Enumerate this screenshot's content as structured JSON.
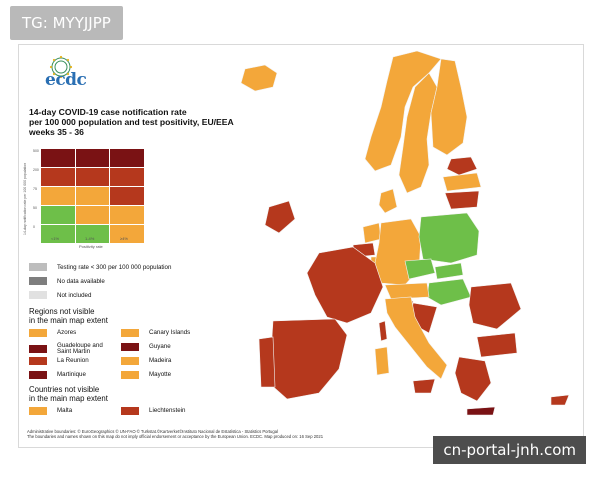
{
  "tag": "TG: MYYJJPP",
  "watermark": "cn-portal-jnh.com",
  "logo": {
    "text": "ecdc",
    "icon": "ecdc-logo-icon"
  },
  "title": {
    "line1": "14-day COVID-19 case notification rate",
    "line2": "per 100 000 population and test positivity, EU/EEA",
    "line3": "weeks 35 - 36"
  },
  "colors": {
    "dark_red": "#7a1214",
    "red": "#b5381d",
    "orange": "#f3a73a",
    "green": "#6ebf49",
    "grey_testing": "#bdbdbd",
    "grey_nodata": "#7e7e7e",
    "grey_notincluded": "#e1e1e1",
    "sea": "#ffffff"
  },
  "matrix": {
    "rows": [
      [
        "dark_red",
        "dark_red",
        "dark_red"
      ],
      [
        "red",
        "red",
        "red"
      ],
      [
        "orange",
        "orange",
        "red"
      ],
      [
        "green",
        "orange",
        "orange"
      ],
      [
        "green",
        "green",
        "orange"
      ]
    ],
    "y_axis_label": "14-day notification rate per 100 000 population",
    "y_ticks": [
      "500",
      "200",
      "75",
      "50",
      "0"
    ],
    "x_ticks": [
      "<1%",
      "1-4%",
      "≥4%"
    ],
    "x_axis_label": "Positivity rate"
  },
  "legend": {
    "testing_rate": "Testing rate < 300 per 100 000 population",
    "no_data": "No data available",
    "not_included": "Not included"
  },
  "regions_heading": {
    "line1": "Regions not visible",
    "line2": "in the main map extent"
  },
  "regions": [
    {
      "label": "Azores",
      "color": "orange"
    },
    {
      "label": "Canary Islands",
      "color": "orange"
    },
    {
      "label": "Guadeloupe and Saint Martin",
      "color": "dark_red"
    },
    {
      "label": "Guyane",
      "color": "dark_red"
    },
    {
      "label": "La Reunion",
      "color": "red"
    },
    {
      "label": "Madeira",
      "color": "orange"
    },
    {
      "label": "Martinique",
      "color": "dark_red"
    },
    {
      "label": "Mayotte",
      "color": "orange"
    }
  ],
  "countries_heading": {
    "line1": "Countries not visible",
    "line2": "in the main map extent"
  },
  "countries": [
    {
      "label": "Malta",
      "color": "orange"
    },
    {
      "label": "Liechtenstein",
      "color": "red"
    }
  ],
  "footer": {
    "line1": "Administrative boundaries: © EuroGeographics © UN-FAO © Turkstat.©Kartverket©Instituto Nacional de Estatística - Statistics Portugal",
    "line2": "The boundaries and names shown on this map do not imply official endorsement or acceptance by the European Union. ECDC. Map produced on: 16 Sep 2021"
  },
  "map_regions": [
    {
      "name": "iceland",
      "color": "orange"
    },
    {
      "name": "norway",
      "color": "orange"
    },
    {
      "name": "sweden",
      "color": "orange"
    },
    {
      "name": "finland",
      "color": "orange"
    },
    {
      "name": "estonia",
      "color": "red"
    },
    {
      "name": "latvia",
      "color": "orange"
    },
    {
      "name": "lithuania",
      "color": "red"
    },
    {
      "name": "denmark",
      "color": "orange"
    },
    {
      "name": "ireland",
      "color": "red"
    },
    {
      "name": "netherlands",
      "color": "orange"
    },
    {
      "name": "belgium",
      "color": "red"
    },
    {
      "name": "germany",
      "color": "orange"
    },
    {
      "name": "poland",
      "color": "green"
    },
    {
      "name": "czechia",
      "color": "green"
    },
    {
      "name": "slovakia",
      "color": "green"
    },
    {
      "name": "hungary",
      "color": "green"
    },
    {
      "name": "austria",
      "color": "orange"
    },
    {
      "name": "france",
      "color": "red"
    },
    {
      "name": "spain",
      "color": "red"
    },
    {
      "name": "portugal",
      "color": "red"
    },
    {
      "name": "italy",
      "color": "orange"
    },
    {
      "name": "slovenia",
      "color": "red"
    },
    {
      "name": "croatia",
      "color": "red"
    },
    {
      "name": "romania",
      "color": "red"
    },
    {
      "name": "bulgaria",
      "color": "red"
    },
    {
      "name": "greece",
      "color": "red"
    },
    {
      "name": "cyprus",
      "color": "red"
    },
    {
      "name": "luxembourg",
      "color": "orange"
    },
    {
      "name": "sardinia",
      "color": "orange"
    },
    {
      "name": "corsica",
      "color": "red"
    },
    {
      "name": "sicily",
      "color": "red"
    },
    {
      "name": "crete",
      "color": "dark_red"
    }
  ]
}
